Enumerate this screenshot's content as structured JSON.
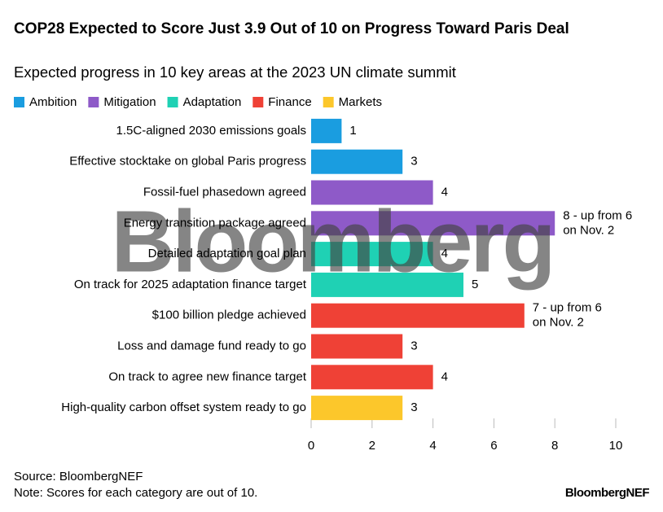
{
  "chart_data": {
    "type": "barh",
    "title": "COP28 Expected to Score Just 3.9 Out of 10 on Progress Toward Paris Deal",
    "subtitle": "Expected progress in 10 key areas at the 2023 UN climate summit",
    "legend": [
      {
        "name": "Ambition",
        "color": "#1a9de0"
      },
      {
        "name": "Mitigation",
        "color": "#8e5ac8"
      },
      {
        "name": "Adaptation",
        "color": "#1fd1b4"
      },
      {
        "name": "Finance",
        "color": "#ef4136"
      },
      {
        "name": "Markets",
        "color": "#fcc72b"
      }
    ],
    "categories": [
      "1.5C-aligned 2030 emissions goals",
      "Effective stocktake on global Paris progress",
      "Fossil-fuel phasedown agreed",
      "Energy transition package agreed",
      "Detailed adaptation goal plan",
      "On track for 2025 adaptation finance target",
      "$100 billion pledge achieved",
      "Loss and damage fund ready to go",
      "On track to agree new finance target",
      "High-quality carbon offset system ready to go"
    ],
    "values": [
      1,
      3,
      4,
      8,
      4,
      5,
      7,
      3,
      4,
      3
    ],
    "value_labels": [
      "1",
      "3",
      "4",
      "8 - up from 6\non Nov. 2",
      "4",
      "5",
      "7 - up from 6\non Nov. 2",
      "3",
      "4",
      "3"
    ],
    "colors": [
      "#1a9de0",
      "#1a9de0",
      "#8e5ac8",
      "#8e5ac8",
      "#1fd1b4",
      "#1fd1b4",
      "#ef4136",
      "#ef4136",
      "#ef4136",
      "#fcc72b"
    ],
    "xlim": [
      0,
      10
    ],
    "xticks": [
      0,
      2,
      4,
      6,
      8,
      10
    ],
    "watermark": "Bloomberg",
    "source": "Source: BloombergNEF",
    "note": "Note: Scores for each category are out of 10.",
    "brand": "BloombergNEF"
  }
}
